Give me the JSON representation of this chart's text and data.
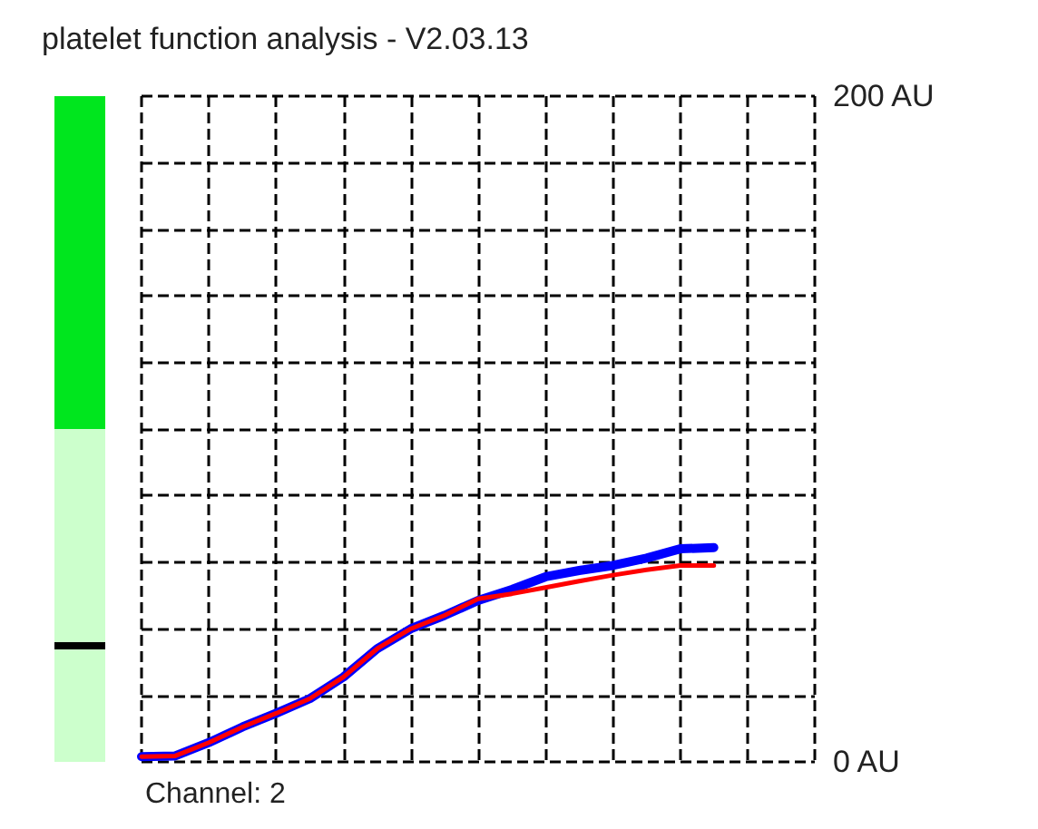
{
  "chart_data": [
    {
      "type": "bar",
      "stacked": true,
      "categories": [
        null
      ],
      "ylim": [
        0,
        200
      ],
      "tick_labels": false,
      "series": [
        {
          "color": "#ccffcc",
          "values": [
            100
          ]
        },
        {
          "color": "#00e61e",
          "values": [
            100
          ]
        }
      ],
      "ref_lines": [
        {
          "axis": "y",
          "value": 35,
          "color": "#000000"
        }
      ]
    },
    {
      "type": "line",
      "title": "platelet function analysis - V2.03.13",
      "annotations": [
        "Channel: 2"
      ],
      "categories": [
        null,
        null,
        null,
        null,
        null,
        null,
        null,
        null,
        null,
        null,
        null,
        null,
        null,
        null,
        null,
        null,
        null,
        null,
        null,
        null,
        null
      ],
      "ylim": [
        0,
        200
      ],
      "yticks": [
        {
          "value": 0,
          "label": "0 AU"
        },
        {
          "value": 20,
          "label": null
        },
        {
          "value": 40,
          "label": null
        },
        {
          "value": 60,
          "label": null
        },
        {
          "value": 80,
          "label": null
        },
        {
          "value": 100,
          "label": null
        },
        {
          "value": 120,
          "label": null
        },
        {
          "value": 140,
          "label": null
        },
        {
          "value": 160,
          "label": null
        },
        {
          "value": 180,
          "label": null
        },
        {
          "value": 200,
          "label": "200 AU"
        }
      ],
      "tick_labels": "y",
      "grid": true,
      "marker": "none",
      "series": [
        {
          "color": "#ff0000",
          "values": [
            1.6,
            1.8,
            5.8,
            10.5,
            14.6,
            19,
            25.5,
            34,
            40,
            44,
            49,
            50.5,
            52.4,
            54.3,
            56.1,
            57.7,
            59,
            59,
            null,
            null,
            null
          ]
        },
        {
          "color": "#0000ff",
          "values": [
            1.6,
            1.8,
            5.8,
            10.5,
            14.6,
            19,
            25.5,
            34,
            40,
            44,
            48.5,
            51.8,
            55.6,
            57.5,
            59,
            61.2,
            64,
            64.4,
            null,
            null,
            null
          ]
        }
      ]
    }
  ]
}
